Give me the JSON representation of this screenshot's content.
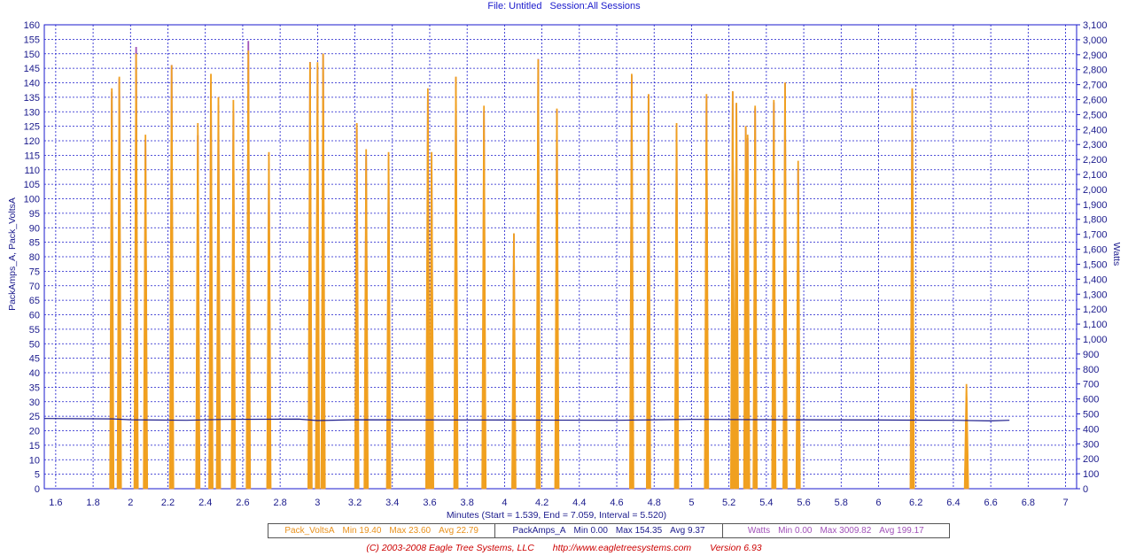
{
  "header": {
    "file": "File: Untitled",
    "session": "Session:All Sessions"
  },
  "chart_data": {
    "type": "line",
    "xlabel": "Minutes (Start = 1.539,  End = 7.059,  Interval =  5.520)",
    "ylabel_left": "PackAmps_A, Pack_VoltsA",
    "ylabel_right": "Watts",
    "xlim": [
      1.539,
      7.059
    ],
    "ylim_left": [
      0,
      160
    ],
    "ylim_right": [
      0,
      3100
    ],
    "x_ticks": [
      "1.6",
      "1.8",
      "2",
      "2.2",
      "2.4",
      "2.6",
      "2.8",
      "3",
      "3.2",
      "3.4",
      "3.6",
      "3.8",
      "4",
      "4.2",
      "4.4",
      "4.6",
      "4.8",
      "5",
      "5.2",
      "5.4",
      "5.6",
      "5.8",
      "6",
      "6.2",
      "6.4",
      "6.6",
      "6.8",
      "7"
    ],
    "y_ticks_left": [
      "0",
      "5",
      "10",
      "15",
      "20",
      "25",
      "30",
      "35",
      "40",
      "45",
      "50",
      "55",
      "60",
      "65",
      "70",
      "75",
      "80",
      "85",
      "90",
      "95",
      "100",
      "105",
      "110",
      "115",
      "120",
      "125",
      "130",
      "135",
      "140",
      "145",
      "150",
      "155",
      "160"
    ],
    "y_ticks_right": [
      "0",
      "100",
      "200",
      "300",
      "400",
      "500",
      "600",
      "700",
      "800",
      "900",
      "1,000",
      "1,100",
      "1,200",
      "1,300",
      "1,400",
      "1,500",
      "1,600",
      "1,700",
      "1,800",
      "1,900",
      "2,000",
      "2,100",
      "2,200",
      "2,300",
      "2,400",
      "2,500",
      "2,600",
      "2,700",
      "2,800",
      "2,900",
      "3,000",
      "3,100"
    ],
    "grid": true,
    "colors": {
      "volts": "#1a1a8c",
      "amps": "#f0a020",
      "watts": "#a050b8",
      "grid": "#1a1acc",
      "axis_text": "#1a1a8c"
    },
    "series": [
      {
        "name": "Pack_VoltsA",
        "x": [
          1.539,
          1.9,
          2.0,
          2.3,
          2.5,
          2.9,
          3.0,
          3.2,
          4.0,
          4.6,
          5.0,
          5.5,
          6.0,
          6.4,
          6.6,
          6.7
        ],
        "values": [
          24.2,
          24.1,
          23.8,
          23.6,
          23.9,
          24.0,
          23.5,
          23.8,
          23.7,
          23.6,
          23.9,
          23.8,
          23.7,
          23.6,
          23.4,
          23.6
        ]
      },
      {
        "name": "PackAmps_A",
        "spikes_x": [
          1.9,
          1.94,
          2.03,
          2.08,
          2.22,
          2.36,
          2.43,
          2.47,
          2.55,
          2.63,
          2.74,
          2.96,
          3.0,
          3.03,
          3.21,
          3.26,
          3.38,
          3.59,
          3.61,
          3.74,
          3.89,
          4.05,
          4.18,
          4.28,
          4.68,
          4.77,
          4.92,
          5.08,
          5.22,
          5.24,
          5.29,
          5.3,
          5.34,
          5.44,
          5.5,
          5.57,
          6.18,
          6.47
        ],
        "spikes_values": [
          138,
          142,
          150,
          122,
          146,
          126,
          143,
          135,
          134,
          151,
          116,
          147,
          147,
          150,
          126,
          117,
          116,
          138,
          116,
          142,
          132,
          88,
          148,
          131,
          143,
          136,
          126,
          136,
          137,
          133,
          125,
          122,
          132,
          134,
          140,
          113,
          138,
          36
        ]
      },
      {
        "name": "Watts",
        "spikes_x": [
          1.9,
          1.94,
          2.03,
          2.08,
          2.22,
          2.36,
          2.43,
          2.47,
          2.55,
          2.63,
          2.74,
          2.96,
          3.0,
          3.03,
          3.21,
          3.26,
          3.38,
          3.59,
          3.61,
          3.74,
          3.89,
          4.05,
          4.18,
          4.28,
          4.68,
          4.77,
          4.92,
          5.08,
          5.22,
          5.24,
          5.29,
          5.3,
          5.34,
          5.44,
          5.5,
          5.57,
          6.18,
          6.47
        ],
        "spikes_values": [
          2650,
          2740,
          2950,
          2330,
          2830,
          2360,
          2710,
          2560,
          2520,
          2990,
          2170,
          2850,
          2820,
          2900,
          2410,
          2220,
          2200,
          2620,
          2160,
          2750,
          2520,
          1700,
          2870,
          2530,
          2760,
          2630,
          2400,
          2620,
          2650,
          2570,
          2410,
          2340,
          2540,
          2580,
          2710,
          2140,
          2640,
          610
        ]
      }
    ]
  },
  "legend": {
    "volts": {
      "name": "Pack_VoltsA",
      "min": "Min 19.40",
      "max": "Max 23.60",
      "avg": "Avg 22.79"
    },
    "amps": {
      "name": "PackAmps_A",
      "min": "Min 0.00",
      "max": "Max 154.35",
      "avg": "Avg 9.37"
    },
    "watts": {
      "name": "Watts",
      "min": "Min 0.00",
      "max": "Max 3009.82",
      "avg": "Avg 199.17"
    }
  },
  "footer": {
    "copyright": "(C) 2003-2008 Eagle Tree Systems, LLC",
    "url": "http://www.eagletreesystems.com",
    "version": "Version 6.93"
  }
}
